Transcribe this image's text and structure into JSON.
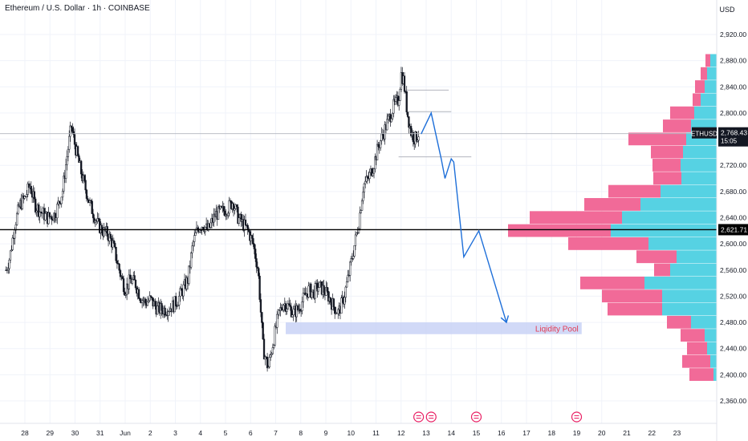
{
  "header": {
    "title": "Ethereum / U.S. Dollar · 1h · COINBASE"
  },
  "price_axis": {
    "currency_label": "USD",
    "ticks": [
      "2,920.00",
      "2,880.00",
      "2,840.00",
      "2,800.00",
      "2,760.00",
      "2,720.00",
      "2,680.00",
      "2,640.00",
      "2,600.00",
      "2,560.00",
      "2,520.00",
      "2,480.00",
      "2,440.00",
      "2,400.00",
      "2,360.00"
    ]
  },
  "time_axis": {
    "labels": [
      "28",
      "29",
      "30",
      "31",
      "Jun",
      "2",
      "3",
      "4",
      "5",
      "6",
      "7",
      "8",
      "9",
      "10",
      "11",
      "12",
      "13",
      "14",
      "15",
      "16",
      "17",
      "18",
      "19",
      "20",
      "21",
      "22",
      "23"
    ]
  },
  "price_label": {
    "symbol": "ETHUSD",
    "price": "2,768.43",
    "countdown": "15:05"
  },
  "level_label": {
    "price": "2,621.71"
  },
  "zone": {
    "label": "Liqidity Pool"
  },
  "colors": {
    "bull": "#089981",
    "bear": "#131722",
    "buy_profile": "#4dd0e1",
    "sell_profile": "#f06292",
    "projection": "#1e6fd9",
    "zone": "#c5cff5",
    "zone_text": "#e23b54",
    "event": "#e91e63"
  },
  "chart_data": {
    "type": "candlestick",
    "y_axis": {
      "min": 2340,
      "max": 2960,
      "ticks": [
        2360,
        2400,
        2440,
        2480,
        2520,
        2560,
        2600,
        2640,
        2680,
        2720,
        2760,
        2800,
        2840,
        2880,
        2920
      ]
    },
    "x_axis": {
      "min": 27.2,
      "max": 54.4,
      "unit": "day (May 28 = 28, Jun 1 = 32)"
    },
    "price_path": [
      [
        27.25,
        2560
      ],
      [
        27.4,
        2580
      ],
      [
        27.6,
        2630
      ],
      [
        27.8,
        2660
      ],
      [
        28.0,
        2670
      ],
      [
        28.2,
        2690
      ],
      [
        28.4,
        2660
      ],
      [
        28.6,
        2650
      ],
      [
        28.9,
        2640
      ],
      [
        29.2,
        2645
      ],
      [
        29.5,
        2680
      ],
      [
        29.7,
        2740
      ],
      [
        29.85,
        2780
      ],
      [
        30.0,
        2750
      ],
      [
        30.3,
        2700
      ],
      [
        30.6,
        2660
      ],
      [
        30.9,
        2630
      ],
      [
        31.1,
        2620
      ],
      [
        31.3,
        2615
      ],
      [
        31.5,
        2600
      ],
      [
        31.8,
        2555
      ],
      [
        32.0,
        2530
      ],
      [
        32.2,
        2545
      ],
      [
        32.4,
        2540
      ],
      [
        32.6,
        2520
      ],
      [
        32.8,
        2510
      ],
      [
        33.0,
        2515
      ],
      [
        33.3,
        2500
      ],
      [
        33.6,
        2500
      ],
      [
        33.9,
        2505
      ],
      [
        34.1,
        2515
      ],
      [
        34.3,
        2530
      ],
      [
        34.5,
        2545
      ],
      [
        34.7,
        2600
      ],
      [
        34.9,
        2625
      ],
      [
        35.1,
        2630
      ],
      [
        35.3,
        2620
      ],
      [
        35.6,
        2645
      ],
      [
        35.9,
        2650
      ],
      [
        36.1,
        2655
      ],
      [
        36.3,
        2665
      ],
      [
        36.5,
        2640
      ],
      [
        36.7,
        2630
      ],
      [
        36.9,
        2620
      ],
      [
        37.1,
        2600
      ],
      [
        37.3,
        2560
      ],
      [
        37.5,
        2440
      ],
      [
        37.7,
        2410
      ],
      [
        37.9,
        2450
      ],
      [
        38.1,
        2490
      ],
      [
        38.3,
        2510
      ],
      [
        38.5,
        2505
      ],
      [
        38.7,
        2495
      ],
      [
        38.9,
        2500
      ],
      [
        39.1,
        2515
      ],
      [
        39.3,
        2530
      ],
      [
        39.5,
        2525
      ],
      [
        39.7,
        2535
      ],
      [
        39.9,
        2530
      ],
      [
        40.1,
        2520
      ],
      [
        40.3,
        2505
      ],
      [
        40.5,
        2495
      ],
      [
        40.7,
        2515
      ],
      [
        40.9,
        2550
      ],
      [
        41.1,
        2590
      ],
      [
        41.3,
        2630
      ],
      [
        41.5,
        2690
      ],
      [
        41.7,
        2700
      ],
      [
        41.9,
        2720
      ],
      [
        42.1,
        2750
      ],
      [
        42.3,
        2770
      ],
      [
        42.5,
        2790
      ],
      [
        42.7,
        2810
      ],
      [
        42.9,
        2820
      ],
      [
        43.0,
        2860
      ],
      [
        43.1,
        2850
      ],
      [
        43.25,
        2800
      ],
      [
        43.4,
        2770
      ],
      [
        43.55,
        2760
      ],
      [
        43.7,
        2768.43
      ]
    ],
    "candle_count": 380,
    "volume_profile": [
      {
        "price": 2880,
        "buy": 8,
        "sell": 6
      },
      {
        "price": 2860,
        "buy": 12,
        "sell": 8
      },
      {
        "price": 2840,
        "buy": 15,
        "sell": 12
      },
      {
        "price": 2820,
        "buy": 20,
        "sell": 10
      },
      {
        "price": 2800,
        "buy": 28,
        "sell": 30
      },
      {
        "price": 2780,
        "buy": 32,
        "sell": 35
      },
      {
        "price": 2760,
        "buy": 38,
        "sell": 72
      },
      {
        "price": 2740,
        "buy": 42,
        "sell": 40
      },
      {
        "price": 2720,
        "buy": 45,
        "sell": 35
      },
      {
        "price": 2700,
        "buy": 44,
        "sell": 35
      },
      {
        "price": 2680,
        "buy": 70,
        "sell": 65
      },
      {
        "price": 2660,
        "buy": 95,
        "sell": 70
      },
      {
        "price": 2640,
        "buy": 118,
        "sell": 115
      },
      {
        "price": 2620,
        "buy": 132,
        "sell": 128
      },
      {
        "price": 2600,
        "buy": 85,
        "sell": 100
      },
      {
        "price": 2580,
        "buy": 50,
        "sell": 50
      },
      {
        "price": 2560,
        "buy": 58,
        "sell": 20
      },
      {
        "price": 2540,
        "buy": 90,
        "sell": 80
      },
      {
        "price": 2520,
        "buy": 68,
        "sell": 75
      },
      {
        "price": 2500,
        "buy": 68,
        "sell": 68
      },
      {
        "price": 2480,
        "buy": 32,
        "sell": 30
      },
      {
        "price": 2460,
        "buy": 15,
        "sell": 30
      },
      {
        "price": 2440,
        "buy": 12,
        "sell": 25
      },
      {
        "price": 2420,
        "buy": 8,
        "sell": 35
      },
      {
        "price": 2400,
        "buy": 4,
        "sell": 30
      }
    ],
    "horizontal_level": 2621.71,
    "current_price": 2768.43,
    "projection_path": [
      [
        43.8,
        2768
      ],
      [
        44.2,
        2800
      ],
      [
        44.6,
        2730
      ],
      [
        44.75,
        2700
      ],
      [
        45.0,
        2730
      ],
      [
        45.1,
        2725
      ],
      [
        45.5,
        2580
      ],
      [
        46.1,
        2620
      ],
      [
        47.2,
        2480
      ]
    ],
    "liquidity_zone": {
      "x_start": 38.4,
      "x_end": 50.2,
      "y_top": 2480,
      "y_bottom": 2462
    },
    "ray_levels": [
      {
        "price": 2835,
        "x_start": 43.2,
        "x_end": 44.9
      },
      {
        "price": 2802,
        "x_start": 43.3,
        "x_end": 45.0
      },
      {
        "price": 2733,
        "x_start": 42.9,
        "x_end": 45.8
      }
    ],
    "event_markers": [
      43.7,
      44.2,
      46.0,
      50.0
    ]
  }
}
